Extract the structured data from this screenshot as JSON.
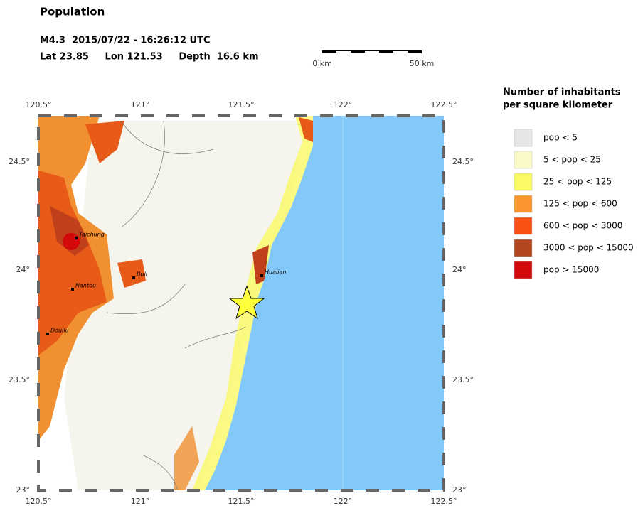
{
  "header": {
    "title": "Population",
    "event": "M4.3  2015/07/22 - 16:26:12 UTC",
    "location": "Lat 23.85     Lon 121.53     Depth  16.6 km"
  },
  "scale": {
    "start": "0 km",
    "end": "50 km"
  },
  "lon_labels": [
    "120.5°",
    "121°",
    "121.5°",
    "122°",
    "122.5°"
  ],
  "lat_labels": [
    "24.5°",
    "24°",
    "23.5°",
    "23°"
  ],
  "cities": [
    "Taichung",
    "Nantou",
    "Buli",
    "Douliu",
    "Hualian"
  ],
  "legend": {
    "title": [
      "Number of inhabitants",
      "per square kilometer"
    ],
    "items": [
      {
        "label": "pop < 5",
        "color": "#e6e6e6"
      },
      {
        "label": "5 < pop < 25",
        "color": "#fafac8"
      },
      {
        "label": "25 < pop < 125",
        "color": "#fafa64"
      },
      {
        "label": "125 < pop < 600",
        "color": "#fa962d"
      },
      {
        "label": "600 < pop < 3000",
        "color": "#fa5014"
      },
      {
        "label": "3000 < pop < 15000",
        "color": "#b4461e"
      },
      {
        "label": "pop > 15000",
        "color": "#d20a0a"
      }
    ]
  }
}
